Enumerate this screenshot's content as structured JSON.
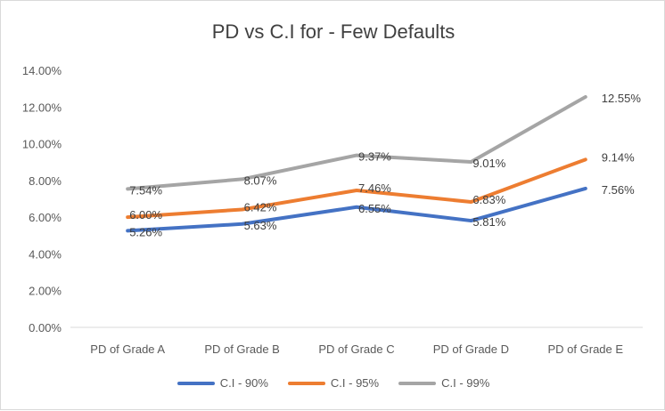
{
  "chart_data": {
    "type": "line",
    "title": "PD vs C.I for - Few Defaults",
    "xlabel": "",
    "ylabel": "",
    "categories": [
      "PD of Grade A",
      "PD of Grade B",
      "PD of Grade C",
      "PD of Grade D",
      "PD of Grade E"
    ],
    "ylim": [
      0,
      14
    ],
    "y_ticks": [
      0,
      2,
      4,
      6,
      8,
      10,
      12,
      14
    ],
    "y_tick_labels": [
      "0.00%",
      "2.00%",
      "4.00%",
      "6.00%",
      "8.00%",
      "10.00%",
      "12.00%",
      "14.00%"
    ],
    "grid": false,
    "legend_position": "bottom",
    "series": [
      {
        "name": "C.I - 90%",
        "color": "#4472c4",
        "values": [
          5.26,
          5.63,
          6.55,
          5.81,
          7.56
        ],
        "labels": [
          "5.26%",
          "5.63%",
          "6.55%",
          "5.81%",
          "7.56%"
        ]
      },
      {
        "name": "C.I - 95%",
        "color": "#ed7d31",
        "values": [
          6.0,
          6.42,
          7.46,
          6.83,
          9.14
        ],
        "labels": [
          "6.00%",
          "6.42%",
          "7.46%",
          "6.83%",
          "9.14%"
        ]
      },
      {
        "name": "C.I - 99%",
        "color": "#a5a5a5",
        "values": [
          7.54,
          8.07,
          9.37,
          9.01,
          12.55
        ],
        "labels": [
          "7.54%",
          "8.07%",
          "9.37%",
          "9.01%",
          "12.55%"
        ]
      }
    ]
  }
}
